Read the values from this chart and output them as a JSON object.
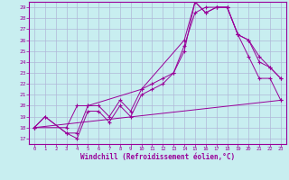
{
  "title": "",
  "xlabel": "Windchill (Refroidissement éolien,°C)",
  "bg_color": "#c8eef0",
  "line_color": "#990099",
  "grid_color": "#b0b8d8",
  "xlim": [
    -0.5,
    23.5
  ],
  "ylim": [
    16.5,
    29.5
  ],
  "xticks": [
    0,
    1,
    2,
    3,
    4,
    5,
    6,
    7,
    8,
    9,
    10,
    11,
    12,
    13,
    14,
    15,
    16,
    17,
    18,
    19,
    20,
    21,
    22,
    23
  ],
  "yticks": [
    17,
    18,
    19,
    20,
    21,
    22,
    23,
    24,
    25,
    26,
    27,
    28,
    29
  ],
  "line1_x": [
    0,
    1,
    3,
    4,
    5,
    6,
    7,
    8,
    9,
    10,
    11,
    12,
    13,
    14,
    15,
    16,
    17,
    18,
    19,
    20,
    21,
    22,
    23
  ],
  "line1_y": [
    18,
    19,
    17.5,
    17,
    19.5,
    19.5,
    18.5,
    20,
    19,
    21,
    21.5,
    22,
    23,
    25,
    29.5,
    28.5,
    29,
    29,
    26.5,
    24.5,
    22.5,
    22.5,
    20.5
  ],
  "line2_x": [
    0,
    1,
    3,
    4,
    5,
    6,
    7,
    8,
    9,
    10,
    11,
    12,
    13,
    14,
    15,
    16,
    17,
    18,
    19,
    20,
    21,
    22,
    23
  ],
  "line2_y": [
    18,
    19,
    17.5,
    17.5,
    20,
    20,
    19,
    20.5,
    19.5,
    21.5,
    22,
    22.5,
    23,
    25.5,
    28.5,
    29,
    29,
    29,
    26.5,
    26,
    24,
    23.5,
    22.5
  ],
  "line3_x": [
    0,
    3,
    4,
    5,
    10,
    14,
    15,
    16,
    17,
    18,
    19,
    20,
    21,
    22,
    23
  ],
  "line3_y": [
    18,
    18,
    20,
    20,
    21.5,
    26,
    29.5,
    28.5,
    29,
    29,
    26.5,
    26,
    24.5,
    23.5,
    22.5
  ],
  "line4_x": [
    0,
    23
  ],
  "line4_y": [
    18,
    20.5
  ]
}
